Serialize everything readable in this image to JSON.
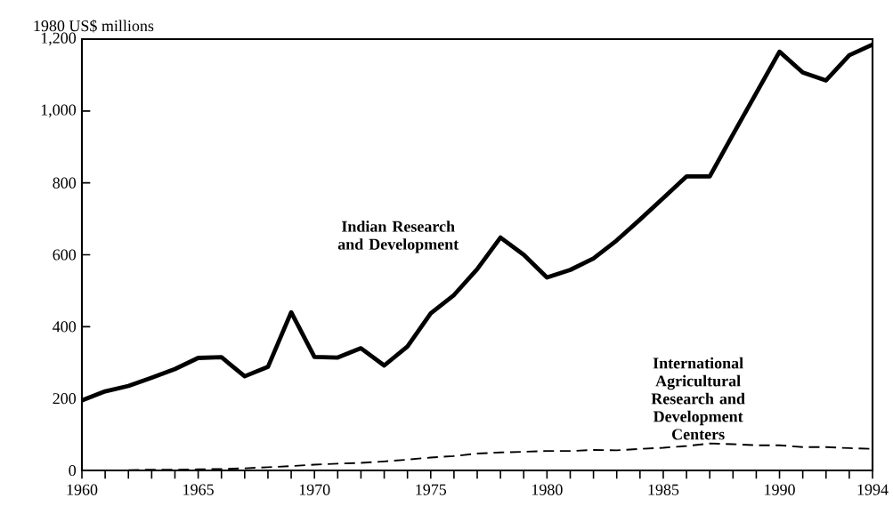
{
  "chart_data": {
    "type": "line",
    "ylabel": "1980 US$ millions",
    "x": [
      1960,
      1961,
      1962,
      1963,
      1964,
      1965,
      1966,
      1967,
      1968,
      1969,
      1970,
      1971,
      1972,
      1973,
      1974,
      1975,
      1976,
      1977,
      1978,
      1979,
      1980,
      1981,
      1982,
      1983,
      1984,
      1985,
      1986,
      1987,
      1988,
      1989,
      1990,
      1991,
      1992,
      1993,
      1994
    ],
    "series": [
      {
        "name": "Indian Research and Development",
        "color": "#000000",
        "line_style": "solid",
        "values": [
          195,
          220,
          235,
          258,
          282,
          313,
          315,
          262,
          288,
          440,
          316,
          314,
          340,
          292,
          345,
          437,
          488,
          560,
          648,
          600,
          537,
          558,
          590,
          640,
          698,
          758,
          818,
          818,
          935,
          1050,
          1165,
          1107,
          1085,
          1155,
          1185
        ]
      },
      {
        "name": "International Agricultural Research and Development Centers",
        "color": "#000000",
        "line_style": "dashed",
        "values": [
          null,
          null,
          1,
          2,
          2,
          3,
          4,
          6,
          9,
          12,
          16,
          19,
          21,
          25,
          30,
          36,
          40,
          47,
          50,
          52,
          54,
          54,
          57,
          56,
          60,
          63,
          68,
          75,
          73,
          70,
          70,
          65,
          65,
          62,
          60
        ]
      }
    ],
    "xlim": [
      1960,
      1994
    ],
    "ylim": [
      0,
      1200
    ],
    "xticks": [
      1960,
      {
        "value": 1961,
        "label": null
      },
      {
        "value": 1962,
        "label": null
      },
      {
        "value": 1963,
        "label": null
      },
      {
        "value": 1964,
        "label": null
      },
      1965,
      {
        "value": 1966,
        "label": null
      },
      {
        "value": 1967,
        "label": null
      },
      {
        "value": 1968,
        "label": null
      },
      {
        "value": 1969,
        "label": null
      },
      1970,
      {
        "value": 1971,
        "label": null
      },
      {
        "value": 1972,
        "label": null
      },
      {
        "value": 1973,
        "label": null
      },
      {
        "value": 1974,
        "label": null
      },
      1975,
      {
        "value": 1976,
        "label": null
      },
      {
        "value": 1977,
        "label": null
      },
      {
        "value": 1978,
        "label": null
      },
      {
        "value": 1979,
        "label": null
      },
      1980,
      {
        "value": 1981,
        "label": null
      },
      {
        "value": 1982,
        "label": null
      },
      {
        "value": 1983,
        "label": null
      },
      {
        "value": 1984,
        "label": null
      },
      1985,
      {
        "value": 1986,
        "label": null
      },
      {
        "value": 1987,
        "label": null
      },
      {
        "value": 1988,
        "label": null
      },
      {
        "value": 1989,
        "label": null
      },
      1990,
      {
        "value": 1991,
        "label": null
      },
      {
        "value": 1992,
        "label": null
      },
      {
        "value": 1993,
        "label": null
      },
      1994
    ],
    "yticks": [
      0,
      200,
      400,
      600,
      800,
      {
        "value": 1000,
        "label": "1,000"
      },
      {
        "value": 1200,
        "label": "1,200"
      }
    ],
    "grid": false
  }
}
